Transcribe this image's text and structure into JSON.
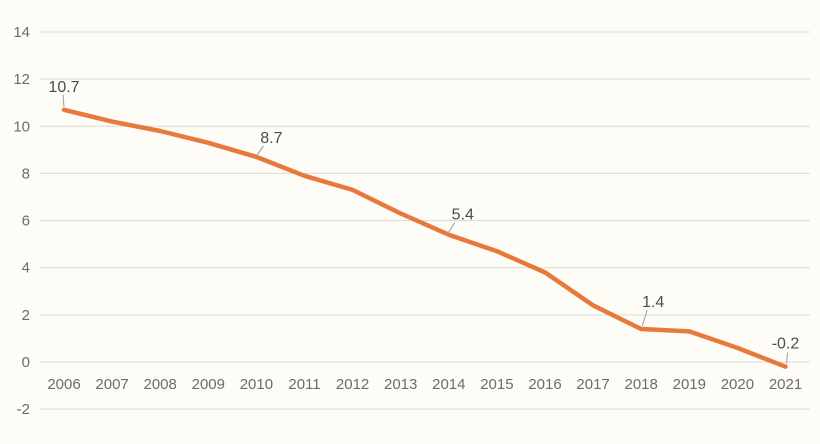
{
  "chart_data": {
    "type": "line",
    "title": "",
    "categories": [
      "2006",
      "2007",
      "2008",
      "2009",
      "2010",
      "2011",
      "2012",
      "2013",
      "2014",
      "2015",
      "2016",
      "2017",
      "2018",
      "2019",
      "2020",
      "2021"
    ],
    "series": [
      {
        "values": [
          10.7,
          10.2,
          9.8,
          9.3,
          8.7,
          7.9,
          7.3,
          6.3,
          5.4,
          4.7,
          3.8,
          2.4,
          1.4,
          1.3,
          0.6,
          -0.2
        ]
      }
    ],
    "data_labels": [
      {
        "category": "2006",
        "text": "10.7"
      },
      {
        "category": "2010",
        "text": "8.7"
      },
      {
        "category": "2014",
        "text": "5.4"
      },
      {
        "category": "2018",
        "text": "1.4"
      },
      {
        "category": "2021",
        "text": "-0.2"
      }
    ],
    "y_axis": {
      "min": -2,
      "max": 14,
      "step": 2,
      "tick_labels": [
        "14",
        "12",
        "10",
        "8",
        "6",
        "4",
        "2",
        "0",
        "-2"
      ]
    },
    "x_axis": {
      "tick_labels": [
        "2006",
        "2007",
        "2008",
        "2009",
        "2010",
        "2011",
        "2012",
        "2013",
        "2014",
        "2015",
        "2016",
        "2017",
        "2018",
        "2019",
        "2020",
        "2021"
      ]
    },
    "grid": true,
    "legend": false
  },
  "colors": {
    "background": "#FDFCF6",
    "line": "#E8793C",
    "gridline": "#DCDAD2",
    "tick_text": "#6E6C67",
    "data_label_text": "#4F4C47",
    "leader_line": "#9E9C98"
  }
}
